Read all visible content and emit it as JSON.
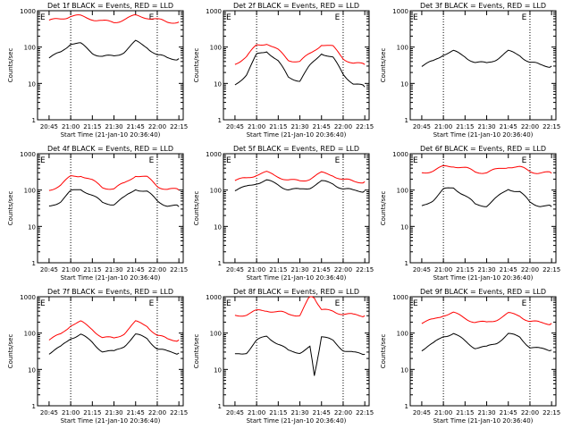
{
  "colors": {
    "events": "#000000",
    "lld": "#ff0000",
    "background": "#ffffff"
  },
  "chart_data": [
    {
      "type": "line",
      "title": "Det 1f BLACK = Events, RED = LLD",
      "ylabel": "Counts/sec",
      "xlabel": "Start Time (21-Jan-10 20:36:40)",
      "yscale": "log",
      "ylim": [
        1,
        1000
      ],
      "ytick_labels": [
        "1",
        "10",
        "100",
        "1000"
      ],
      "xtick_labels": [
        "20:45",
        "21:00",
        "21:15",
        "21:30",
        "21:45",
        "22:00",
        "22:15"
      ],
      "markers": [
        "E",
        "E"
      ],
      "x": [
        "20:45",
        "20:53",
        "21:00",
        "21:07",
        "21:15",
        "21:22",
        "21:30",
        "21:37",
        "21:45",
        "21:53",
        "22:00",
        "22:07",
        "22:15"
      ],
      "series": [
        {
          "name": "Events",
          "color": "#000000",
          "values": [
            50,
            70,
            130,
            120,
            70,
            55,
            55,
            75,
            140,
            100,
            60,
            50,
            48
          ]
        },
        {
          "name": "LLD",
          "color": "#ff0000",
          "values": [
            520,
            600,
            720,
            700,
            600,
            510,
            480,
            580,
            720,
            660,
            560,
            500,
            490
          ]
        }
      ]
    },
    {
      "type": "line",
      "title": "Det 2f BLACK = Events, RED = LLD",
      "ylabel": "Counts/sec",
      "xlabel": "Start Time (21-Jan-10 20:36:40)",
      "yscale": "log",
      "ylim": [
        1,
        1000
      ],
      "ytick_labels": [
        "1",
        "10",
        "100",
        "1000"
      ],
      "xtick_labels": [
        "20:45",
        "21:00",
        "21:15",
        "21:30",
        "21:45",
        "22:00",
        "22:15"
      ],
      "markers": [
        "E",
        "E"
      ],
      "x": [
        "20:45",
        "20:53",
        "21:00",
        "21:07",
        "21:15",
        "21:22",
        "21:30",
        "21:37",
        "21:45",
        "21:53",
        "22:00",
        "22:07",
        "22:15"
      ],
      "series": [
        {
          "name": "Events",
          "color": "#000000",
          "values": [
            9,
            18,
            60,
            80,
            40,
            15,
            12,
            30,
            70,
            50,
            18,
            10,
            8
          ]
        },
        {
          "name": "LLD",
          "color": "#ff0000",
          "values": [
            35,
            55,
            110,
            130,
            80,
            45,
            40,
            65,
            120,
            100,
            50,
            35,
            33
          ]
        }
      ]
    },
    {
      "type": "line",
      "title": "Det 3f BLACK = Events, RED = LLD",
      "ylabel": "Counts/sec",
      "xlabel": "Start Time (21-Jan-10 20:36:40)",
      "yscale": "log",
      "ylim": [
        1,
        1000
      ],
      "ytick_labels": [
        "1",
        "10",
        "100",
        "1000"
      ],
      "xtick_labels": [
        "20:45",
        "21:00",
        "21:15",
        "21:30",
        "21:45",
        "22:00",
        "22:15"
      ],
      "markers": [
        "E",
        "E"
      ],
      "x": [
        "20:45",
        "20:53",
        "21:00",
        "21:07",
        "21:15",
        "21:22",
        "21:30",
        "21:37",
        "21:45",
        "21:53",
        "22:00",
        "22:07",
        "22:15"
      ],
      "series": [
        {
          "name": "Events",
          "color": "#000000",
          "values": [
            30,
            40,
            65,
            75,
            55,
            38,
            35,
            48,
            75,
            60,
            38,
            32,
            30
          ]
        }
      ]
    },
    {
      "type": "line",
      "title": "Det 4f BLACK = Events, RED = LLD",
      "ylabel": "Counts/sec",
      "xlabel": "Start Time (21-Jan-10 20:36:40)",
      "yscale": "log",
      "ylim": [
        1,
        1000
      ],
      "ytick_labels": [
        "1",
        "10",
        "100",
        "1000"
      ],
      "xtick_labels": [
        "20:45",
        "21:00",
        "21:15",
        "21:30",
        "21:45",
        "22:00",
        "22:15"
      ],
      "markers": [
        "E",
        "E"
      ],
      "x": [
        "20:45",
        "20:53",
        "21:00",
        "21:07",
        "21:15",
        "21:22",
        "21:30",
        "21:37",
        "21:45",
        "21:53",
        "22:00",
        "22:07",
        "22:15"
      ],
      "series": [
        {
          "name": "Events",
          "color": "#000000",
          "values": [
            35,
            50,
            90,
            110,
            70,
            45,
            42,
            60,
            110,
            90,
            50,
            38,
            35
          ]
        },
        {
          "name": "LLD",
          "color": "#ff0000",
          "values": [
            100,
            140,
            230,
            260,
            180,
            120,
            110,
            150,
            260,
            220,
            130,
            105,
            100
          ]
        }
      ]
    },
    {
      "type": "line",
      "title": "Det 5f BLACK = Events, RED = LLD",
      "ylabel": "Counts/sec",
      "xlabel": "Start Time (21-Jan-10 20:36:40)",
      "yscale": "log",
      "ylim": [
        1,
        1000
      ],
      "ytick_labels": [
        "1",
        "10",
        "100",
        "1000"
      ],
      "xtick_labels": [
        "20:45",
        "21:00",
        "21:15",
        "21:30",
        "21:45",
        "22:00",
        "22:15"
      ],
      "markers": [
        "E",
        "E"
      ],
      "x": [
        "20:45",
        "20:53",
        "21:00",
        "21:07",
        "21:15",
        "21:22",
        "21:30",
        "21:37",
        "21:45",
        "21:53",
        "22:00",
        "22:07",
        "22:15"
      ],
      "series": [
        {
          "name": "Events",
          "color": "#000000",
          "values": [
            100,
            120,
            160,
            180,
            140,
            105,
            100,
            120,
            170,
            150,
            110,
            95,
            95
          ]
        },
        {
          "name": "LLD",
          "color": "#ff0000",
          "values": [
            180,
            210,
            270,
            300,
            240,
            185,
            175,
            210,
            290,
            260,
            190,
            175,
            170
          ]
        }
      ]
    },
    {
      "type": "line",
      "title": "Det 6f BLACK = Events, RED = LLD",
      "ylabel": "Counts/sec",
      "xlabel": "Start Time (21-Jan-10 20:36:40)",
      "yscale": "log",
      "ylim": [
        1,
        1000
      ],
      "ytick_labels": [
        "1",
        "10",
        "100",
        "1000"
      ],
      "xtick_labels": [
        "20:45",
        "21:00",
        "21:15",
        "21:30",
        "21:45",
        "22:00",
        "22:15"
      ],
      "markers": [
        "E",
        "E"
      ],
      "x": [
        "20:45",
        "20:53",
        "21:00",
        "21:07",
        "21:15",
        "21:22",
        "21:30",
        "21:37",
        "21:45",
        "21:53",
        "22:00",
        "22:07",
        "22:15"
      ],
      "series": [
        {
          "name": "Events",
          "color": "#000000",
          "values": [
            35,
            55,
            100,
            120,
            70,
            40,
            38,
            60,
            110,
            90,
            45,
            38,
            35
          ]
        },
        {
          "name": "LLD",
          "color": "#ff0000",
          "values": [
            300,
            350,
            430,
            470,
            400,
            320,
            310,
            360,
            450,
            420,
            330,
            300,
            290
          ]
        }
      ]
    },
    {
      "type": "line",
      "title": "Det 7f BLACK = Events, RED = LLD",
      "ylabel": "Counts/sec",
      "xlabel": "Start Time (21-Jan-10 20:36:40)",
      "yscale": "log",
      "ylim": [
        1,
        1000
      ],
      "ytick_labels": [
        "1",
        "10",
        "100",
        "1000"
      ],
      "xtick_labels": [
        "20:45",
        "21:00",
        "21:15",
        "21:30",
        "21:45",
        "22:00",
        "22:15"
      ],
      "markers": [
        "E",
        "E"
      ],
      "x": [
        "20:45",
        "20:53",
        "21:00",
        "21:07",
        "21:15",
        "21:22",
        "21:30",
        "21:37",
        "21:45",
        "21:53",
        "22:00",
        "22:07",
        "22:15"
      ],
      "series": [
        {
          "name": "Events",
          "color": "#000000",
          "values": [
            28,
            40,
            75,
            90,
            55,
            32,
            30,
            45,
            90,
            70,
            38,
            30,
            28
          ]
        },
        {
          "name": "LLD",
          "color": "#ff0000",
          "values": [
            65,
            90,
            170,
            200,
            130,
            75,
            70,
            100,
            200,
            160,
            85,
            68,
            65
          ]
        }
      ]
    },
    {
      "type": "line",
      "title": "Det 8f BLACK = Events, RED = LLD",
      "ylabel": "Counts/sec",
      "xlabel": "Start Time (21-Jan-10 20:36:40)",
      "yscale": "log",
      "ylim": [
        1,
        1000
      ],
      "ytick_labels": [
        "1",
        "10",
        "100",
        "1000"
      ],
      "xtick_labels": [
        "20:45",
        "21:00",
        "21:15",
        "21:30",
        "21:45",
        "22:00",
        "22:15"
      ],
      "markers": [
        "E",
        "E"
      ],
      "x": [
        "20:45",
        "20:53",
        "21:00",
        "21:07",
        "21:15",
        "21:22",
        "21:30",
        "21:37",
        "21:40",
        "21:45",
        "21:53",
        "22:00",
        "22:07",
        "22:15"
      ],
      "series": [
        {
          "name": "Events",
          "color": "#000000",
          "values": [
            25,
            30,
            60,
            85,
            50,
            32,
            30,
            40,
            7,
            80,
            60,
            35,
            28,
            26
          ]
        },
        {
          "name": "LLD",
          "color": "#ff0000",
          "values": [
            300,
            330,
            400,
            430,
            380,
            330,
            320,
            1000,
            1000,
            420,
            400,
            340,
            310,
            300
          ]
        }
      ]
    },
    {
      "type": "line",
      "title": "Det 9f BLACK = Events, RED = LLD",
      "ylabel": "Counts/sec",
      "xlabel": "Start Time (21-Jan-10 20:36:40)",
      "yscale": "log",
      "ylim": [
        1,
        1000
      ],
      "ytick_labels": [
        "1",
        "10",
        "100",
        "1000"
      ],
      "xtick_labels": [
        "20:45",
        "21:00",
        "21:15",
        "21:30",
        "21:45",
        "22:00",
        "22:15"
      ],
      "markers": [
        "E",
        "E"
      ],
      "x": [
        "20:45",
        "20:53",
        "21:00",
        "21:07",
        "21:15",
        "21:22",
        "21:30",
        "21:37",
        "21:45",
        "21:53",
        "22:00",
        "22:07",
        "22:15"
      ],
      "series": [
        {
          "name": "Events",
          "color": "#000000",
          "values": [
            35,
            50,
            85,
            95,
            60,
            40,
            40,
            55,
            95,
            75,
            42,
            36,
            34
          ]
        },
        {
          "name": "LLD",
          "color": "#ff0000",
          "values": [
            190,
            230,
            320,
            350,
            260,
            200,
            190,
            240,
            340,
            300,
            210,
            190,
            185
          ]
        }
      ]
    }
  ]
}
